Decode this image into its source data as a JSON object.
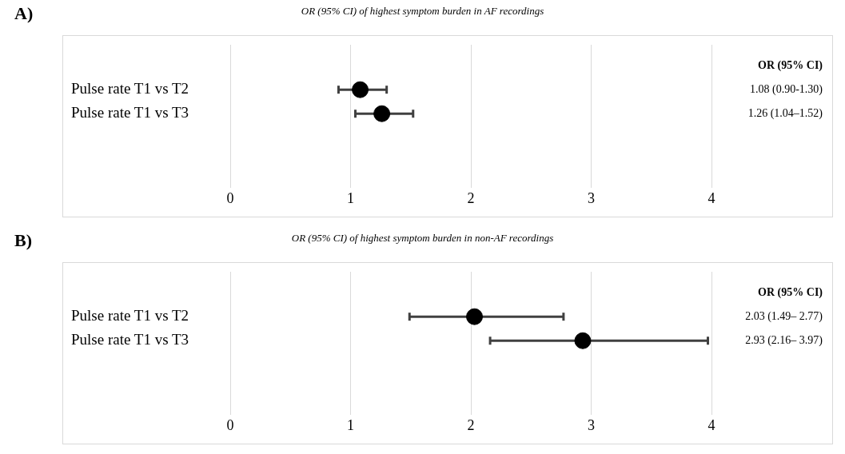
{
  "chart_data": [
    {
      "type": "scatter",
      "title": "OR (95% CI) of highest symptom burden in AF recordings",
      "annotations": [
        "A)",
        "OR (95% CI)",
        "1.08 (0.90-1.30)",
        "1.26 (1.04–1.52)"
      ],
      "orientation": "horizontal",
      "categories": [
        "Pulse rate T1 vs T2",
        "Pulse rate T1 vs T3"
      ],
      "values": [
        1.08,
        1.26
      ],
      "errors": [
        [
          0.9,
          1.3
        ],
        [
          1.04,
          1.52
        ]
      ],
      "color": "#000000",
      "xlim": [
        0,
        4
      ],
      "xticks": [
        0,
        1,
        2,
        3,
        4
      ],
      "grid": "x",
      "marker": "circle"
    },
    {
      "type": "scatter",
      "title": "OR (95% CI) of highest symptom burden in non-AF recordings",
      "annotations": [
        "B)",
        "OR (95% CI)",
        "2.03 (1.49– 2.77)",
        "2.93 (2.16– 3.97)"
      ],
      "orientation": "horizontal",
      "categories": [
        "Pulse rate T1 vs T2",
        "Pulse rate T1 vs T3"
      ],
      "values": [
        2.03,
        2.93
      ],
      "errors": [
        [
          1.49,
          2.77
        ],
        [
          2.16,
          3.97
        ]
      ],
      "color": "#000000",
      "xlim": [
        0,
        4
      ],
      "xticks": [
        0,
        1,
        2,
        3,
        4
      ],
      "grid": "x",
      "marker": "circle"
    }
  ]
}
